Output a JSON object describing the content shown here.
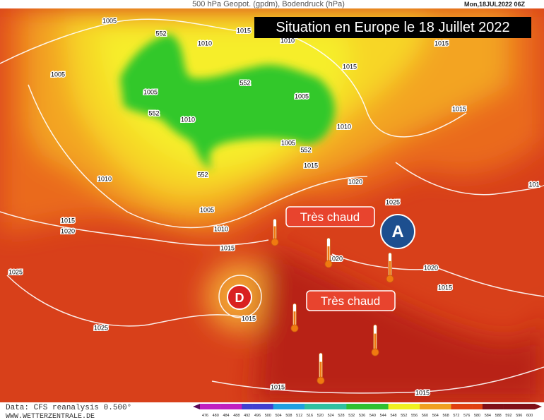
{
  "header": {
    "title": "500 hPa Geopot. (gpdm), Bodendruck (hPa)",
    "date": "Mon,18JUL2022 06Z"
  },
  "banner": "Situation en Europe le 18 Juillet 2022",
  "labels": [
    "Très chaud",
    "Très chaud"
  ],
  "pressure_centers": [
    "A",
    "D"
  ],
  "isobar_labels": [
    "1005",
    "552",
    "1015",
    "1010",
    "1010",
    "1015",
    "1005",
    "1005",
    "552",
    "1005",
    "552",
    "1010",
    "1015",
    "1005",
    "552",
    "1010",
    "552",
    "1015",
    "1010",
    "1020",
    "1005",
    "1025",
    "1015",
    "1020",
    "1010",
    "1015",
    "1020",
    "1020",
    "1015",
    "1025",
    "1015",
    "1025",
    "1015",
    "1015",
    "1015",
    "101"
  ],
  "colorbar": [
    476,
    480,
    484,
    488,
    492,
    496,
    500,
    504,
    508,
    512,
    516,
    520,
    524,
    528,
    532,
    536,
    540,
    544,
    548,
    552,
    556,
    560,
    564,
    568,
    572,
    576,
    580,
    584,
    588,
    592,
    596,
    600
  ],
  "footer": {
    "source": "Data: CFS reanalysis 0.500°",
    "site": "WWW.WETTERZENTRALE.DE"
  }
}
